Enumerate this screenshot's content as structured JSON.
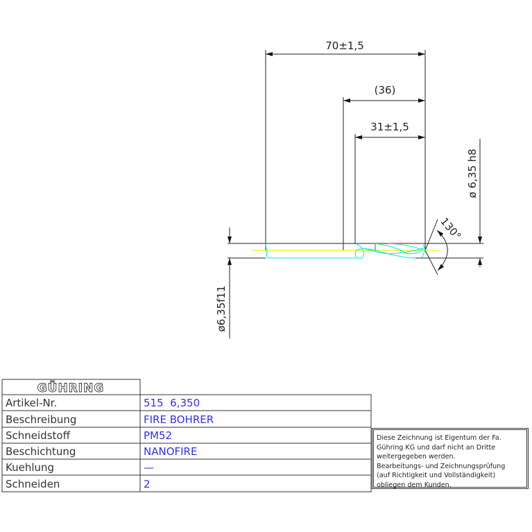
{
  "drawing": {
    "dimensions": {
      "overall_length": "70±1,5",
      "shank_ref": "(36)",
      "flute_length": "31±1,5",
      "diameter_right": "ø 6,35 h8",
      "diameter_left": "ø6,35f11",
      "point_angle": "130°"
    },
    "line_colors": {
      "outline": "#222222",
      "flute": "#00e5ee",
      "centerline": "#ffee00",
      "accent": "#ff3333"
    }
  },
  "title_block": {
    "logo": "GÜHRING",
    "rows": [
      {
        "label": "Artikel-Nr.",
        "value": "515  6,350"
      },
      {
        "label": "Beschreibung",
        "value": "FIRE BOHRER"
      },
      {
        "label": "Schneidstoff",
        "value": "PM52"
      },
      {
        "label": "Beschichtung",
        "value": "NANOFIRE"
      },
      {
        "label": "Kuehlung",
        "value": "—"
      },
      {
        "label": "Schneiden",
        "value": "2"
      }
    ],
    "disclaimer": "Diese Zeichnung ist Eigentum der Fa.\nGühring KG und darf nicht an Dritte\nweitergegeben werden.\nBearbeitungs- und Zeichnungsprüfung\n(auf Richtigkeit und Vollständigkeit)\nobliegen dem Kunden."
  }
}
